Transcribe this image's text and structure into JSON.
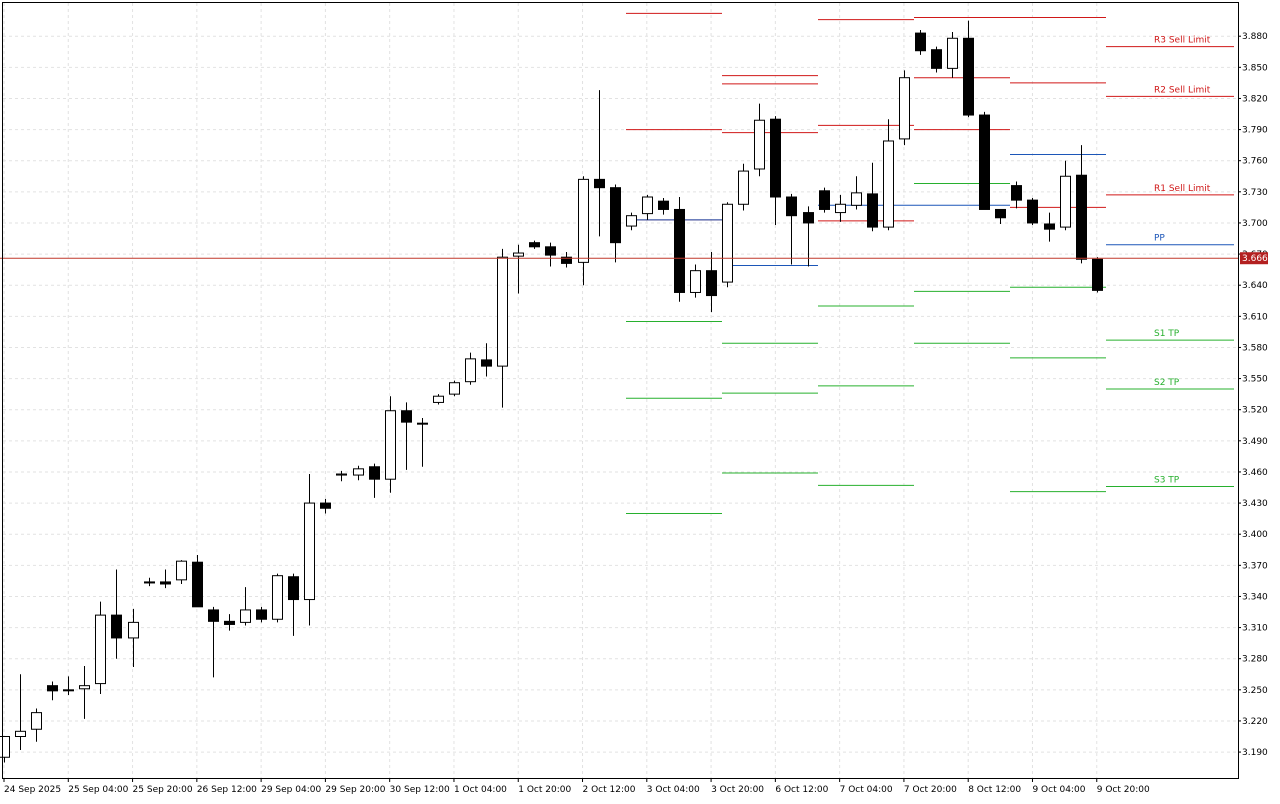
{
  "chart_data": {
    "type": "candlestick",
    "timeframe_note": "",
    "current_price": "3.666",
    "ylim": [
      3.165,
      3.912
    ],
    "y_ticks": [
      "3.880",
      "3.850",
      "3.820",
      "3.790",
      "3.760",
      "3.730",
      "3.700",
      "3.670",
      "3.640",
      "3.610",
      "3.580",
      "3.550",
      "3.520",
      "3.490",
      "3.460",
      "3.430",
      "3.400",
      "3.370",
      "3.340",
      "3.310",
      "3.280",
      "3.250",
      "3.220",
      "3.190"
    ],
    "x_ticks": [
      "24 Sep 2025",
      "25 Sep 04:00",
      "25 Sep 20:00",
      "26 Sep 12:00",
      "29 Sep 04:00",
      "29 Sep 20:00",
      "30 Sep 12:00",
      "1 Oct 04:00",
      "1 Oct 20:00",
      "2 Oct 12:00",
      "3 Oct 04:00",
      "3 Oct 20:00",
      "6 Oct 12:00",
      "7 Oct 04:00",
      "7 Oct 20:00",
      "8 Oct 12:00",
      "9 Oct 04:00",
      "9 Oct 20:00"
    ],
    "candles": [
      {
        "o": 3.185,
        "h": 3.2,
        "l": 3.18,
        "c": 3.205
      },
      {
        "o": 3.205,
        "h": 3.265,
        "l": 3.192,
        "c": 3.21
      },
      {
        "o": 3.212,
        "h": 3.232,
        "l": 3.2,
        "c": 3.228
      },
      {
        "o": 3.254,
        "h": 3.258,
        "l": 3.24,
        "c": 3.249
      },
      {
        "o": 3.25,
        "h": 3.263,
        "l": 3.245,
        "c": 3.25
      },
      {
        "o": 3.251,
        "h": 3.273,
        "l": 3.222,
        "c": 3.254
      },
      {
        "o": 3.256,
        "h": 3.335,
        "l": 3.246,
        "c": 3.322
      },
      {
        "o": 3.322,
        "h": 3.366,
        "l": 3.28,
        "c": 3.3
      },
      {
        "o": 3.3,
        "h": 3.328,
        "l": 3.272,
        "c": 3.315
      },
      {
        "o": 3.354,
        "h": 3.358,
        "l": 3.35,
        "c": 3.353
      },
      {
        "o": 3.354,
        "h": 3.366,
        "l": 3.348,
        "c": 3.352
      },
      {
        "o": 3.356,
        "h": 3.375,
        "l": 3.352,
        "c": 3.374
      },
      {
        "o": 3.373,
        "h": 3.38,
        "l": 3.335,
        "c": 3.33
      },
      {
        "o": 3.327,
        "h": 3.33,
        "l": 3.262,
        "c": 3.316
      },
      {
        "o": 3.316,
        "h": 3.323,
        "l": 3.307,
        "c": 3.313
      },
      {
        "o": 3.315,
        "h": 3.349,
        "l": 3.312,
        "c": 3.327
      },
      {
        "o": 3.327,
        "h": 3.33,
        "l": 3.315,
        "c": 3.318
      },
      {
        "o": 3.318,
        "h": 3.362,
        "l": 3.315,
        "c": 3.36
      },
      {
        "o": 3.359,
        "h": 3.362,
        "l": 3.302,
        "c": 3.337
      },
      {
        "o": 3.337,
        "h": 3.458,
        "l": 3.312,
        "c": 3.43
      },
      {
        "o": 3.43,
        "h": 3.434,
        "l": 3.42,
        "c": 3.425
      },
      {
        "o": 3.457,
        "h": 3.461,
        "l": 3.451,
        "c": 3.458
      },
      {
        "o": 3.457,
        "h": 3.466,
        "l": 3.452,
        "c": 3.463
      },
      {
        "o": 3.465,
        "h": 3.468,
        "l": 3.435,
        "c": 3.453
      },
      {
        "o": 3.453,
        "h": 3.533,
        "l": 3.44,
        "c": 3.519
      },
      {
        "o": 3.519,
        "h": 3.527,
        "l": 3.462,
        "c": 3.508
      },
      {
        "o": 3.507,
        "h": 3.512,
        "l": 3.465,
        "c": 3.507
      },
      {
        "o": 3.527,
        "h": 3.535,
        "l": 3.525,
        "c": 3.533
      },
      {
        "o": 3.535,
        "h": 3.548,
        "l": 3.533,
        "c": 3.546
      },
      {
        "o": 3.547,
        "h": 3.575,
        "l": 3.544,
        "c": 3.569
      },
      {
        "o": 3.568,
        "h": 3.584,
        "l": 3.552,
        "c": 3.562
      },
      {
        "o": 3.562,
        "h": 3.675,
        "l": 3.522,
        "c": 3.667
      },
      {
        "o": 3.668,
        "h": 3.679,
        "l": 3.632,
        "c": 3.671
      },
      {
        "o": 3.681,
        "h": 3.683,
        "l": 3.675,
        "c": 3.677
      },
      {
        "o": 3.677,
        "h": 3.681,
        "l": 3.658,
        "c": 3.669
      },
      {
        "o": 3.667,
        "h": 3.672,
        "l": 3.657,
        "c": 3.661
      },
      {
        "o": 3.662,
        "h": 3.745,
        "l": 3.64,
        "c": 3.742
      },
      {
        "o": 3.742,
        "h": 3.828,
        "l": 3.687,
        "c": 3.734
      },
      {
        "o": 3.734,
        "h": 3.737,
        "l": 3.662,
        "c": 3.681
      },
      {
        "o": 3.697,
        "h": 3.71,
        "l": 3.693,
        "c": 3.707
      },
      {
        "o": 3.709,
        "h": 3.727,
        "l": 3.703,
        "c": 3.725
      },
      {
        "o": 3.721,
        "h": 3.724,
        "l": 3.708,
        "c": 3.713
      },
      {
        "o": 3.713,
        "h": 3.725,
        "l": 3.624,
        "c": 3.633
      },
      {
        "o": 3.633,
        "h": 3.66,
        "l": 3.628,
        "c": 3.654
      },
      {
        "o": 3.654,
        "h": 3.672,
        "l": 3.614,
        "c": 3.63
      },
      {
        "o": 3.643,
        "h": 3.72,
        "l": 3.638,
        "c": 3.718
      },
      {
        "o": 3.718,
        "h": 3.757,
        "l": 3.712,
        "c": 3.75
      },
      {
        "o": 3.752,
        "h": 3.815,
        "l": 3.745,
        "c": 3.799
      },
      {
        "o": 3.8,
        "h": 3.803,
        "l": 3.698,
        "c": 3.725
      },
      {
        "o": 3.725,
        "h": 3.728,
        "l": 3.66,
        "c": 3.707
      },
      {
        "o": 3.71,
        "h": 3.716,
        "l": 3.658,
        "c": 3.7
      },
      {
        "o": 3.731,
        "h": 3.734,
        "l": 3.71,
        "c": 3.713
      },
      {
        "o": 3.71,
        "h": 3.727,
        "l": 3.701,
        "c": 3.718
      },
      {
        "o": 3.717,
        "h": 3.745,
        "l": 3.713,
        "c": 3.729
      },
      {
        "o": 3.728,
        "h": 3.758,
        "l": 3.692,
        "c": 3.696
      },
      {
        "o": 3.696,
        "h": 3.8,
        "l": 3.693,
        "c": 3.779
      },
      {
        "o": 3.781,
        "h": 3.847,
        "l": 3.775,
        "c": 3.84
      },
      {
        "o": 3.883,
        "h": 3.886,
        "l": 3.862,
        "c": 3.866
      },
      {
        "o": 3.867,
        "h": 3.87,
        "l": 3.845,
        "c": 3.849
      },
      {
        "o": 3.849,
        "h": 3.884,
        "l": 3.84,
        "c": 3.878
      },
      {
        "o": 3.878,
        "h": 3.895,
        "l": 3.802,
        "c": 3.804
      },
      {
        "o": 3.804,
        "h": 3.807,
        "l": 3.72,
        "c": 3.713
      },
      {
        "o": 3.713,
        "h": 3.713,
        "l": 3.699,
        "c": 3.705
      },
      {
        "o": 3.736,
        "h": 3.74,
        "l": 3.714,
        "c": 3.722
      },
      {
        "o": 3.722,
        "h": 3.724,
        "l": 3.698,
        "c": 3.7
      },
      {
        "o": 3.699,
        "h": 3.71,
        "l": 3.682,
        "c": 3.694
      },
      {
        "o": 3.696,
        "h": 3.76,
        "l": 3.693,
        "c": 3.745
      },
      {
        "o": 3.746,
        "h": 3.775,
        "l": 3.661,
        "c": 3.665
      },
      {
        "o": 3.665,
        "h": 3.667,
        "l": 3.633,
        "c": 3.635
      }
    ],
    "pivot_levels": [
      {
        "r3": 3.902,
        "r2": 3.79,
        "r1": 3.703,
        "pp": 3.703,
        "s1": 3.605,
        "s2": 3.531,
        "s3": 3.42
      },
      {
        "r3": 3.842,
        "r2": 3.834,
        "r1": 3.787,
        "pp": 3.659,
        "s1": 3.584,
        "s2": 3.536,
        "s3": 3.459
      },
      {
        "r3": 3.896,
        "r2": 3.794,
        "r1": 3.702,
        "pp": 3.717,
        "s1": 3.62,
        "s2": 3.543,
        "s3": 3.447
      },
      {
        "r3": 3.898,
        "r2": 3.84,
        "r1": 3.79,
        "pp": 3.717,
        "s1": 3.738,
        "s2": 3.634,
        "s3": 3.584
      },
      {
        "r3": 3.898,
        "r2": 3.835,
        "r1": 3.715,
        "pp": 3.766,
        "s1": 3.638,
        "s2": 3.57,
        "s3": 3.441
      }
    ],
    "labeled_levels": [
      {
        "label": "R3 Sell Limit",
        "value": 3.87,
        "color": "#d01818"
      },
      {
        "label": "R2 Sell Limit",
        "value": 3.822,
        "color": "#d01818"
      },
      {
        "label": "R1 Sell Limit",
        "value": 3.727,
        "color": "#d01818"
      },
      {
        "label": "PP",
        "value": 3.679,
        "color": "#1c56b8"
      },
      {
        "label": "S1 TP",
        "value": 3.587,
        "color": "#27b02e"
      },
      {
        "label": "S2 TP",
        "value": 3.54,
        "color": "#27b02e"
      },
      {
        "label": "S3 TP",
        "value": 3.446,
        "color": "#27b02e"
      }
    ],
    "colors": {
      "resistance": "#d01818",
      "pivot": "#1c56b8",
      "support": "#27b02e",
      "price_line": "#c0392b",
      "price_tag": "#b32020",
      "bull_body": "#ffffff",
      "bear_body": "#000000",
      "grid": "#e2e2e2"
    },
    "grid": true
  }
}
